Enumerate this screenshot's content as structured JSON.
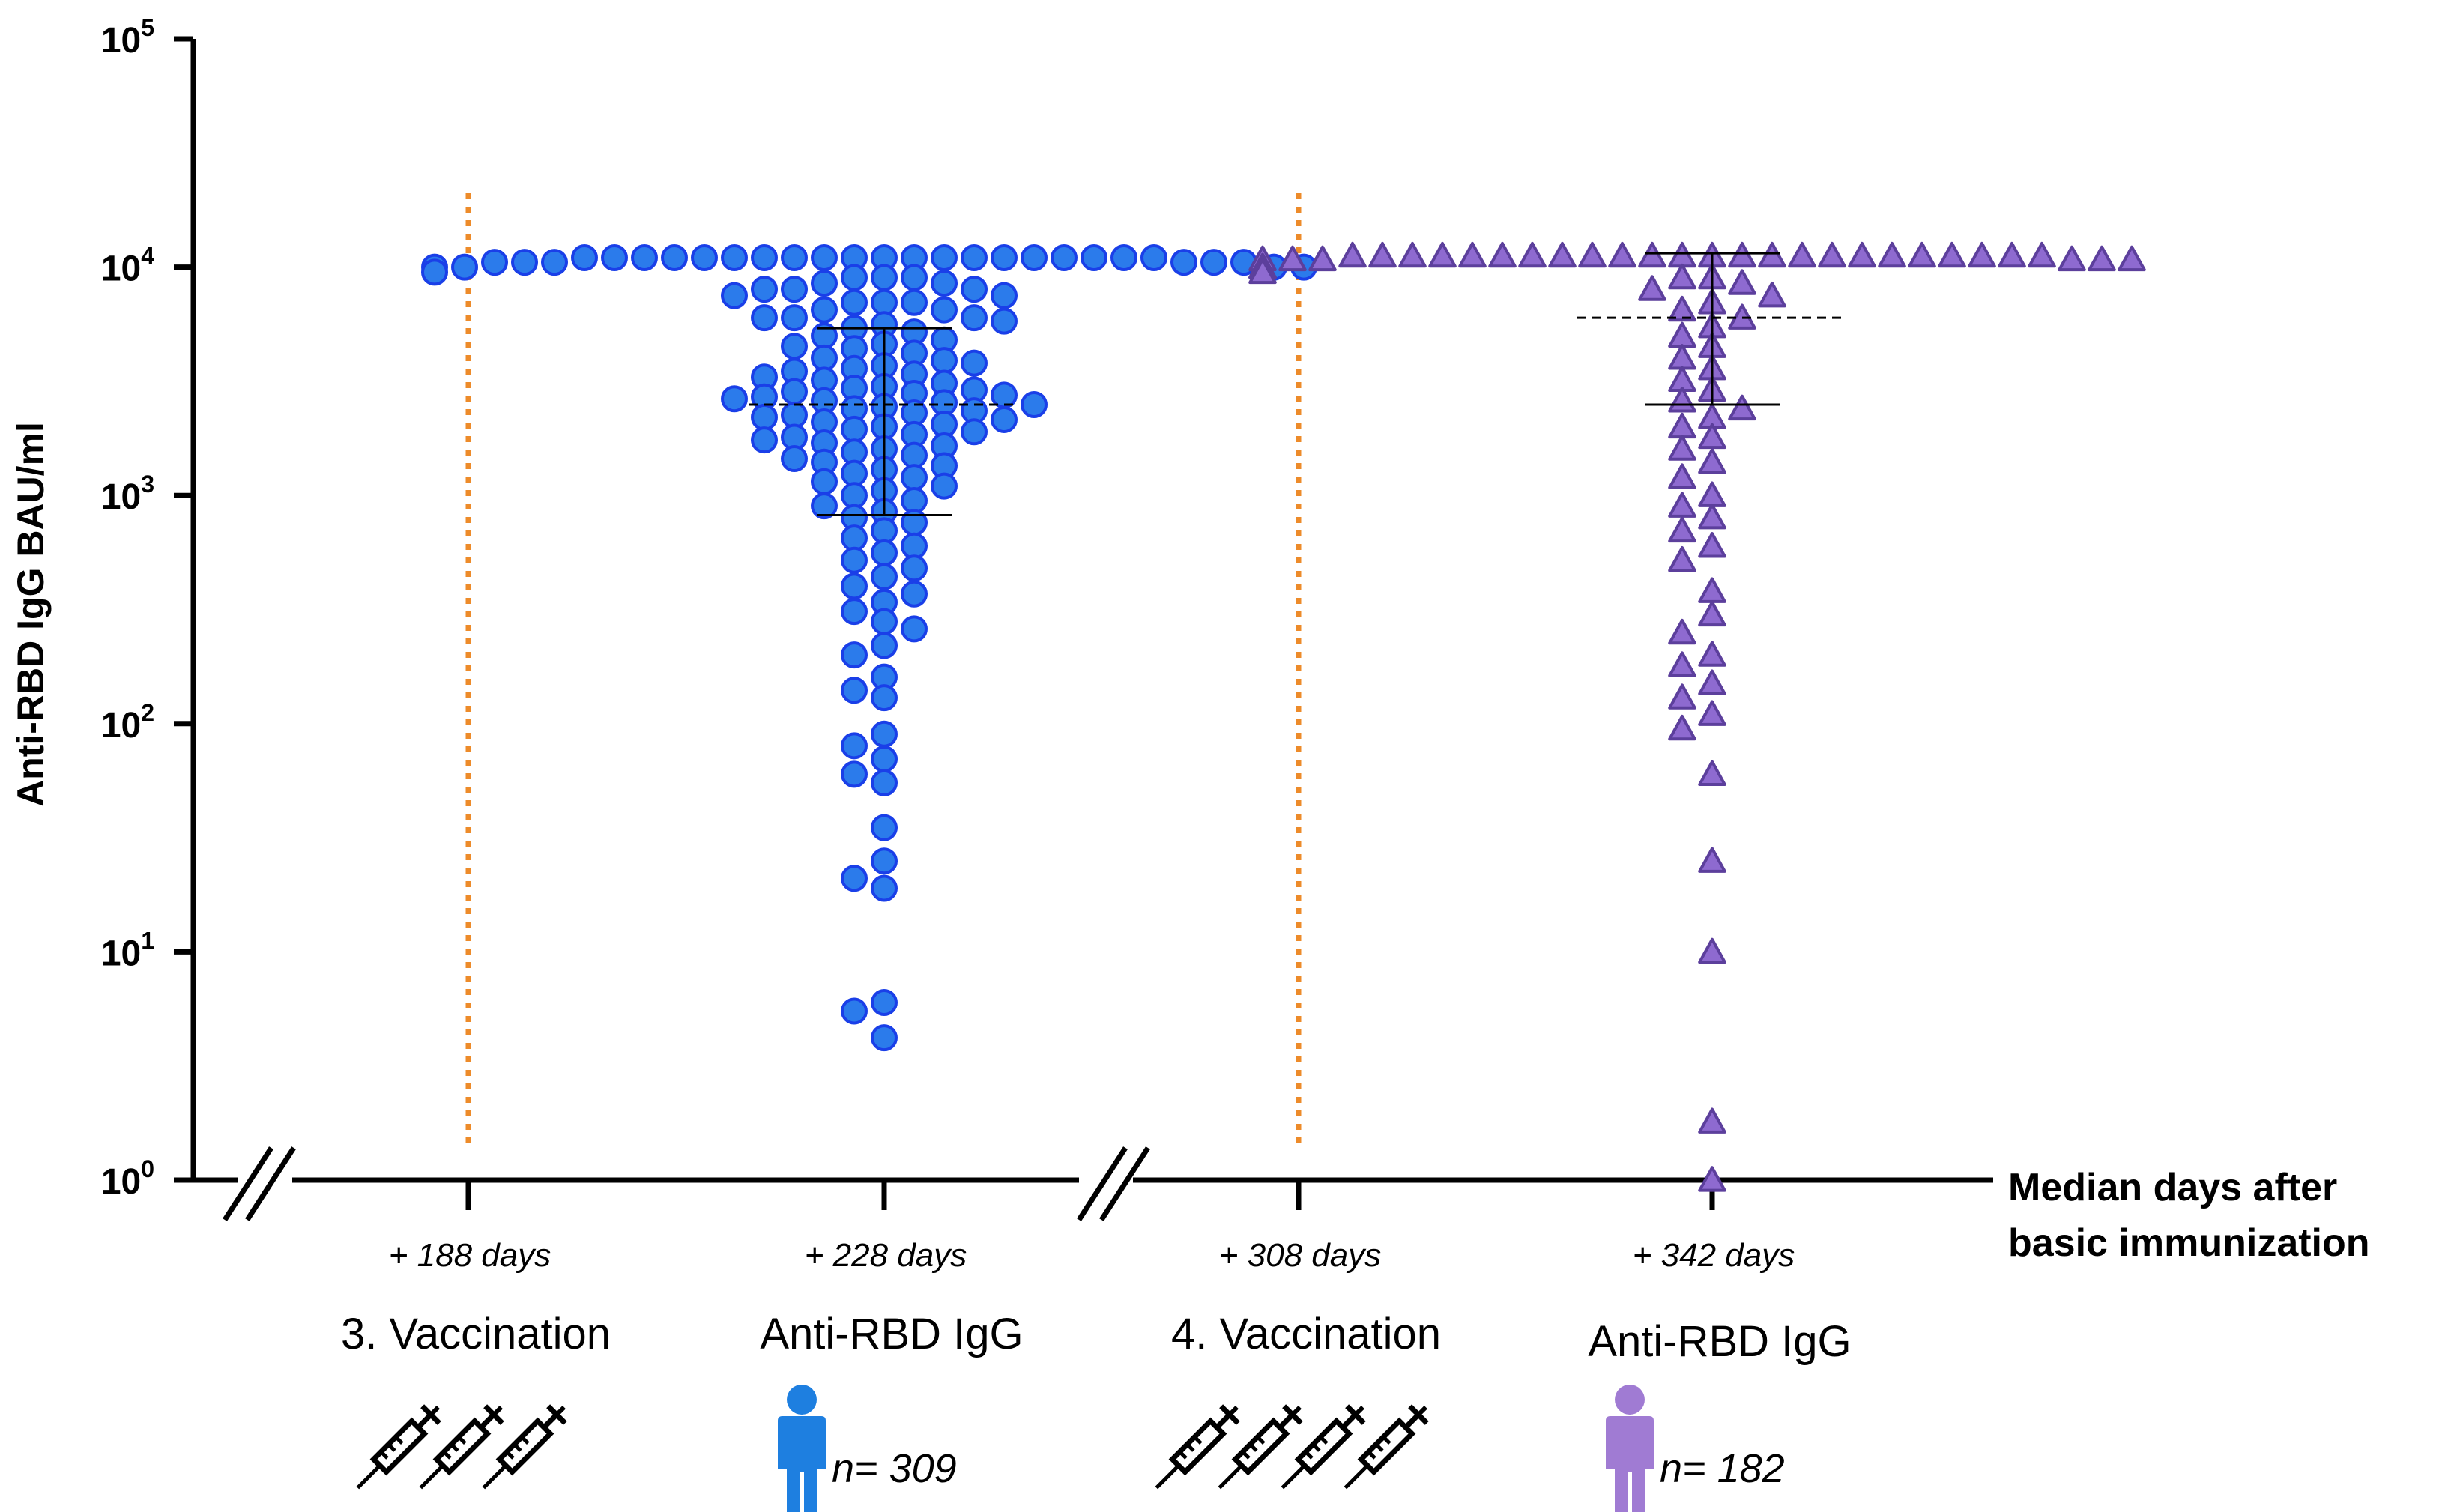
{
  "chart_data": {
    "type": "scatter",
    "title": "",
    "ylabel": "Anti-RBD IgG BAU/ml",
    "xlabel": "Median days after basic immunization",
    "xlabel_lines": [
      "Median days after",
      "basic immunization"
    ],
    "yscale": "log",
    "ylim": [
      1,
      100000
    ],
    "y_ticks": [
      {
        "value": 1,
        "base": "10",
        "exp": "0"
      },
      {
        "value": 10,
        "base": "10",
        "exp": "1"
      },
      {
        "value": 100,
        "base": "10",
        "exp": "2"
      },
      {
        "value": 1000,
        "base": "10",
        "exp": "3"
      },
      {
        "value": 10000,
        "base": "10",
        "exp": "4"
      },
      {
        "value": 100000,
        "base": "10",
        "exp": "5"
      }
    ],
    "grid": false,
    "categories": [
      {
        "days": "+ 188 days",
        "label": "3. Vaccination",
        "icon": "syringe-icon",
        "icon_count": 3,
        "vline_color": "#ED8B2A"
      },
      {
        "days": "+ 228 days",
        "label": "Anti-RBD IgG",
        "icon": "person-icon",
        "icon_color": "#1E7FE0",
        "n": "n= 309"
      },
      {
        "days": "+ 308 days",
        "label": "4. Vaccination",
        "icon": "syringe-icon",
        "icon_count": 4,
        "vline_color": "#ED8B2A"
      },
      {
        "days": "+ 342 days",
        "label": "Anti-RBD IgG",
        "icon": "person-icon",
        "icon_color": "#A07BD3",
        "n": "n= 182"
      }
    ],
    "series": [
      {
        "category_index": 1,
        "marker": "circle",
        "fill": "#2B7BEB",
        "stroke": "#1a3fe8",
        "median": 2500,
        "q1": 820,
        "q3": 5400,
        "values": [
          11000,
          11000,
          11000,
          11000,
          11000,
          11000,
          11000,
          11000,
          11000,
          11000,
          11000,
          11000,
          11000,
          11000,
          11000,
          11000,
          11000,
          11000,
          11000,
          11000,
          10500,
          10500,
          10500,
          10500,
          10500,
          10500,
          10000,
          10000,
          10000,
          10000,
          9500,
          9000,
          9000,
          9000,
          8500,
          8500,
          8000,
          8000,
          8000,
          7500,
          7500,
          7000,
          7000,
          7000,
          6500,
          6500,
          6000,
          6000,
          6000,
          5800,
          5600,
          5400,
          5200,
          5000,
          4800,
          4600,
          4500,
          4400,
          4200,
          4000,
          3900,
          3800,
          3700,
          3600,
          3500,
          3400,
          3300,
          3200,
          3100,
          3000,
          2950,
          2900,
          2850,
          2800,
          2750,
          2700,
          2650,
          2600,
          2550,
          2500,
          2450,
          2400,
          2350,
          2300,
          2250,
          2200,
          2150,
          2100,
          2050,
          2000,
          1950,
          1900,
          1850,
          1800,
          1750,
          1700,
          1650,
          1600,
          1550,
          1500,
          1450,
          1400,
          1350,
          1300,
          1250,
          1200,
          1150,
          1100,
          1050,
          1000,
          950,
          900,
          850,
          800,
          760,
          700,
          650,
          600,
          560,
          520,
          480,
          440,
          400,
          370,
          340,
          310,
          280,
          260,
          220,
          200,
          160,
          140,
          130,
          90,
          80,
          70,
          60,
          55,
          35,
          25,
          21,
          19,
          6,
          5.5,
          4.2
        ],
        "median_label": "",
        "name": ""
      },
      {
        "category_index": 3,
        "marker": "triangle",
        "fill": "#8E6AD0",
        "stroke": "#5c3f9c",
        "median": 6000,
        "q1": 2500,
        "q3": 11500,
        "values": [
          11200,
          11200,
          11200,
          11200,
          11200,
          11200,
          11200,
          11200,
          11200,
          11200,
          11200,
          11200,
          11200,
          11200,
          11200,
          11200,
          11200,
          11200,
          11200,
          11200,
          11200,
          11200,
          11200,
          11200,
          10800,
          10800,
          10800,
          10800,
          10800,
          10800,
          10000,
          10000,
          10000,
          10000,
          9500,
          9000,
          9000,
          8500,
          8000,
          7500,
          7000,
          6500,
          6000,
          5500,
          5000,
          4500,
          4000,
          3600,
          3200,
          2900,
          2600,
          2400,
          2200,
          2000,
          1800,
          1600,
          1400,
          1200,
          1000,
          900,
          800,
          700,
          600,
          520,
          380,
          300,
          250,
          200,
          180,
          150,
          130,
          110,
          95,
          60,
          25,
          10,
          1.8,
          1.0
        ],
        "name": ""
      }
    ]
  }
}
